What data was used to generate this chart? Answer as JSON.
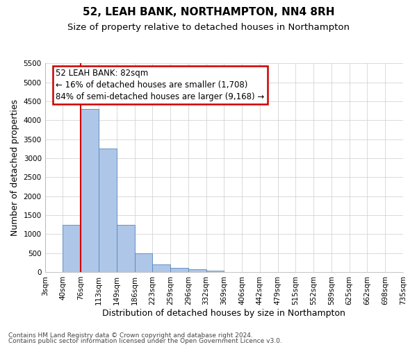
{
  "title": "52, LEAH BANK, NORTHAMPTON, NN4 8RH",
  "subtitle": "Size of property relative to detached houses in Northampton",
  "xlabel": "Distribution of detached houses by size in Northampton",
  "ylabel": "Number of detached properties",
  "footer_line1": "Contains HM Land Registry data © Crown copyright and database right 2024.",
  "footer_line2": "Contains public sector information licensed under the Open Government Licence v3.0.",
  "annotation_line1": "52 LEAH BANK: 82sqm",
  "annotation_line2": "← 16% of detached houses are smaller (1,708)",
  "annotation_line3": "84% of semi-detached houses are larger (9,168) →",
  "bin_labels": [
    "3sqm",
    "40sqm",
    "76sqm",
    "113sqm",
    "149sqm",
    "186sqm",
    "223sqm",
    "259sqm",
    "296sqm",
    "332sqm",
    "369sqm",
    "406sqm",
    "442sqm",
    "479sqm",
    "515sqm",
    "552sqm",
    "589sqm",
    "625sqm",
    "662sqm",
    "698sqm",
    "735sqm"
  ],
  "bar_values": [
    0,
    1250,
    4300,
    3250,
    1250,
    490,
    200,
    100,
    70,
    40,
    0,
    0,
    0,
    0,
    0,
    0,
    0,
    0,
    0,
    0
  ],
  "bar_color": "#aec6e8",
  "bar_edge_color": "#5588bb",
  "ylim": [
    0,
    5500
  ],
  "yticks": [
    0,
    500,
    1000,
    1500,
    2000,
    2500,
    3000,
    3500,
    4000,
    4500,
    5000,
    5500
  ],
  "background_color": "#ffffff",
  "grid_color": "#cccccc",
  "annotation_box_color": "#ffffff",
  "annotation_box_edgecolor": "#cc0000",
  "red_line_color": "#cc0000",
  "title_fontsize": 11,
  "subtitle_fontsize": 9.5,
  "axis_label_fontsize": 9,
  "tick_fontsize": 7.5,
  "annotation_fontsize": 8.5,
  "footer_fontsize": 6.5
}
